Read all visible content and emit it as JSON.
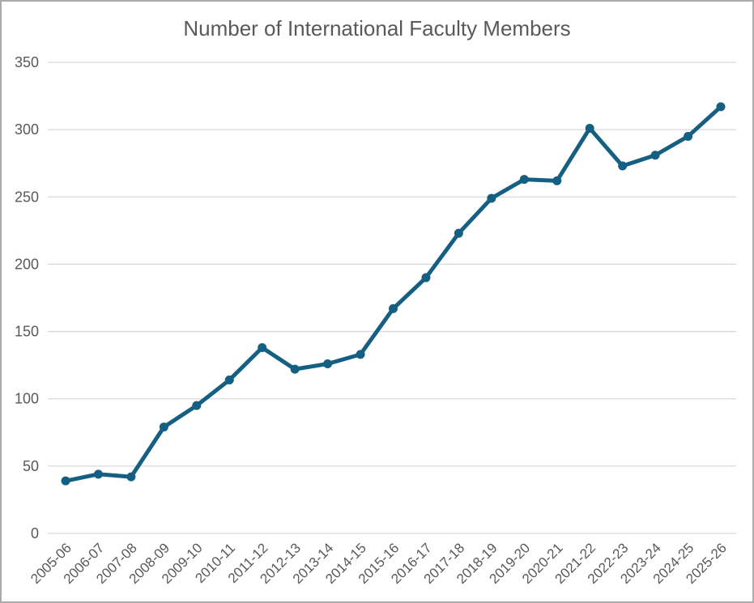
{
  "chart_data": {
    "type": "line",
    "title": "Number of International Faculty Members",
    "categories": [
      "2005-06",
      "2006-07",
      "2007-08",
      "2008-09",
      "2009-10",
      "2010-11",
      "2011-12",
      "2012-13",
      "2013-14",
      "2014-15",
      "2015-16",
      "2016-17",
      "2017-18",
      "2018-19",
      "2019-20",
      "2020-21",
      "2021-22",
      "2022-23",
      "2023-24",
      "2024-25",
      "2025-26"
    ],
    "values": [
      39,
      44,
      42,
      79,
      95,
      114,
      138,
      122,
      126,
      133,
      167,
      190,
      223,
      249,
      263,
      262,
      301,
      273,
      281,
      295,
      317
    ],
    "xlabel": "",
    "ylabel": "",
    "ylim": [
      0,
      350
    ],
    "ytick_step": 50,
    "yticks": [
      0,
      50,
      100,
      150,
      200,
      250,
      300,
      350
    ],
    "grid": "horizontal",
    "legend": "none",
    "marker": "circle",
    "colors": {
      "line": "#156082",
      "marker": "#156082",
      "gridline": "#d9d9d9",
      "text": "#595959",
      "background": "#ffffff",
      "border": "#ababab"
    }
  }
}
